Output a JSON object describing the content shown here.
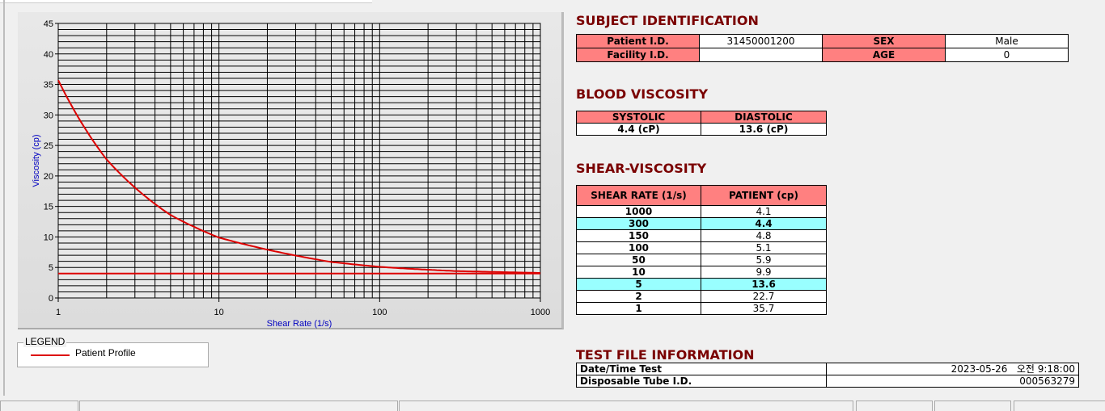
{
  "subject": {
    "title": "SUBJECT IDENTIFICATION",
    "patient_id_label": "Patient I.D.",
    "patient_id": "31450001200",
    "sex_label": "SEX",
    "sex": "Male",
    "facility_label": "Facility I.D.",
    "facility": "",
    "age_label": "AGE",
    "age": "0"
  },
  "blood": {
    "title": "BLOOD VISCOSITY",
    "systolic_label": "SYSTOLIC",
    "diastolic_label": "DIASTOLIC",
    "systolic": "4.4 (cP)",
    "diastolic": "13.6 (cP)"
  },
  "shear": {
    "title": "SHEAR-VISCOSITY",
    "col1": "SHEAR RATE (1/s)",
    "col2": "PATIENT (cp)",
    "rows": [
      {
        "rate": "1000",
        "value": "4.1",
        "hl": false
      },
      {
        "rate": "300",
        "value": "4.4",
        "hl": true
      },
      {
        "rate": "150",
        "value": "4.8",
        "hl": false
      },
      {
        "rate": "100",
        "value": "5.1",
        "hl": false
      },
      {
        "rate": "50",
        "value": "5.9",
        "hl": false
      },
      {
        "rate": "10",
        "value": "9.9",
        "hl": false
      },
      {
        "rate": "5",
        "value": "13.6",
        "hl": true
      },
      {
        "rate": "2",
        "value": "22.7",
        "hl": false
      },
      {
        "rate": "1",
        "value": "35.7",
        "hl": false
      }
    ]
  },
  "test": {
    "title": "TEST FILE INFORMATION",
    "date_label": "Date/Time Test",
    "date": "2023-05-26   오전 9:18:00",
    "tube_label": "Disposable Tube I.D.",
    "tube": "000563279"
  },
  "legend": {
    "title": "LEGEND",
    "entry": "Patient Profile"
  },
  "colors": {
    "header": "#ff8080",
    "highlight": "#99ffff",
    "title": "#7a0000",
    "curve": "#dd0000"
  },
  "chart_data": {
    "type": "line",
    "xlabel": "Shear Rate (1/s)",
    "ylabel": "Viscosity (cp)",
    "xscale": "log",
    "xlim": [
      1,
      1000
    ],
    "ylim": [
      0,
      45
    ],
    "grid": true,
    "xticks": [
      "1",
      "10",
      "100",
      "1000"
    ],
    "yticks": [
      "0",
      "5",
      "10",
      "15",
      "20",
      "25",
      "30",
      "35",
      "40",
      "45"
    ],
    "series": [
      {
        "name": "Patient Profile",
        "x": [
          1,
          2,
          5,
          10,
          50,
          100,
          150,
          300,
          1000
        ],
        "y": [
          35.7,
          22.7,
          13.6,
          9.9,
          5.9,
          5.1,
          4.8,
          4.4,
          4.1
        ]
      },
      {
        "x": [
          1,
          1000
        ],
        "y": [
          4.0,
          4.0
        ]
      }
    ]
  }
}
